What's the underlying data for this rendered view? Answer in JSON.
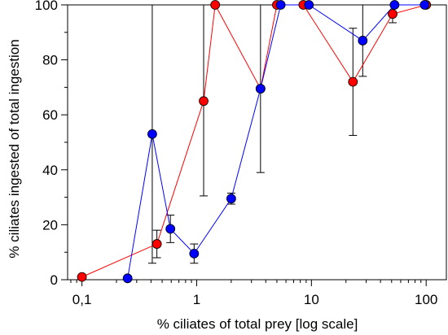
{
  "chart_data": {
    "type": "scatter",
    "x_scale": "log",
    "xlabel": "% ciliates of total prey [log scale]",
    "ylabel": "% ciliates ingested of total ingestion",
    "xlim": [
      0.075,
      150
    ],
    "ylim": [
      0,
      100
    ],
    "x_ticks": [
      0.1,
      1,
      10,
      100
    ],
    "x_tick_labels": [
      "0,1",
      "1",
      "10",
      "100"
    ],
    "y_ticks": [
      0,
      20,
      40,
      60,
      80,
      100
    ],
    "y_tick_labels": [
      "0",
      "20",
      "40",
      "60",
      "80",
      "100"
    ],
    "grid": false,
    "series": [
      {
        "color": "#ff0000",
        "points": [
          {
            "x": 0.1,
            "y": 1
          },
          {
            "x": 0.45,
            "y": 13,
            "err_low": 8,
            "err_high": 18
          },
          {
            "x": 1.15,
            "y": 65,
            "err_low": 30.5,
            "err_high": 100
          },
          {
            "x": 1.45,
            "y": 100
          },
          {
            "x": 3.6,
            "y": 69.5
          },
          {
            "x": 5.0,
            "y": 100
          },
          {
            "x": 8.5,
            "y": 100
          },
          {
            "x": 23,
            "y": 72,
            "err_low": 52.5,
            "err_high": 91.5
          },
          {
            "x": 51,
            "y": 96.7,
            "err_low": 93.5,
            "err_high": 100
          },
          {
            "x": 100,
            "y": 100
          }
        ]
      },
      {
        "color": "#0000ff",
        "points": [
          {
            "x": 0.25,
            "y": 0.5
          },
          {
            "x": 0.41,
            "y": 53,
            "err_low": 6,
            "err_high": 100
          },
          {
            "x": 0.59,
            "y": 18.5,
            "err_low": 13.5,
            "err_high": 23.5
          },
          {
            "x": 0.95,
            "y": 9.5,
            "err_low": 6,
            "err_high": 13
          },
          {
            "x": 2.0,
            "y": 29.5,
            "err_low": 27.5,
            "err_high": 31.5
          },
          {
            "x": 3.6,
            "y": 69.5,
            "err_low": 39,
            "err_high": 100
          },
          {
            "x": 5.4,
            "y": 100
          },
          {
            "x": 9.5,
            "y": 100
          },
          {
            "x": 28,
            "y": 87,
            "err_low": 74,
            "err_high": 100
          },
          {
            "x": 53,
            "y": 100
          },
          {
            "x": 97,
            "y": 100
          }
        ]
      }
    ]
  }
}
